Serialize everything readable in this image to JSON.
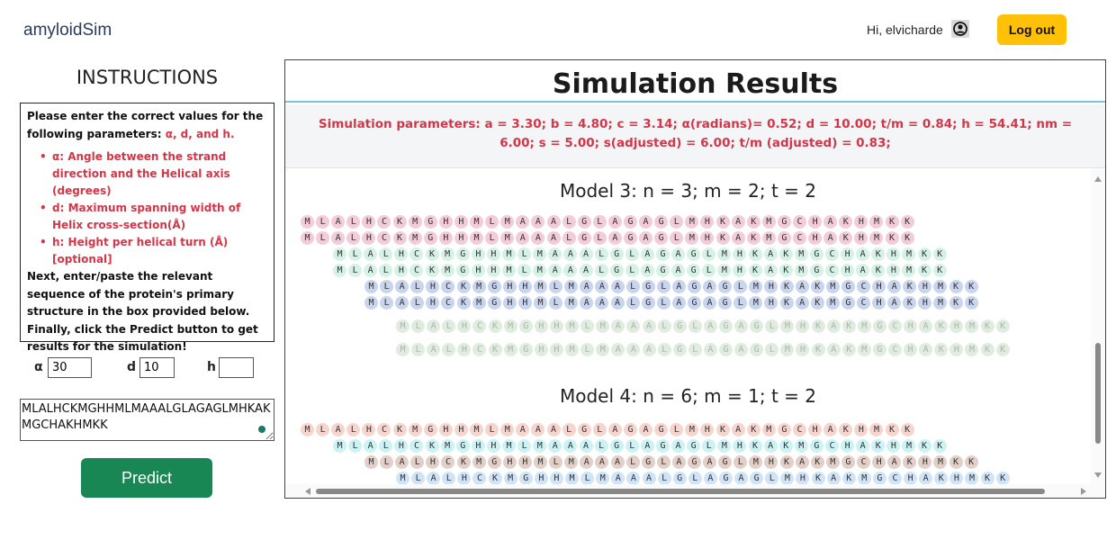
{
  "header": {
    "brand": "amyloidSim",
    "greeting": "Hi, elvicharde",
    "logout_label": "Log out"
  },
  "instructions": {
    "title": "INSTRUCTIONS",
    "intro": "Please enter the correct values for the following parameters: ",
    "intro_params": "α, d, and h.",
    "bullets": [
      "α: Angle between the strand direction and the Helical axis (degrees)",
      "d: Maximum spanning width of Helix cross-section(Å)",
      "h: Height per helical turn (Å) [optional]"
    ],
    "next": "Next, enter/paste the relevant sequence of the protein's primary structure in the box provided below.",
    "finally": "Finally, click the Predict button to get results for the simulation!"
  },
  "form": {
    "alpha_label": "α",
    "alpha_value": "30",
    "d_label": "d",
    "d_value": "10",
    "h_label": "h",
    "h_value": "",
    "sequence": "MLALHCKMGHHMLMAAALGLAGAGLMHKAKMGCHAKHMKK",
    "predict_label": "Predict"
  },
  "results": {
    "title": "Simulation Results",
    "params_text": "Simulation parameters: a = 3.30; b = 4.80; c = 3.14; α(radians)= 0.52; d = 10.00; t/m = 0.84; h = 54.41; nm = 6.00; s = 5.00; s(adjusted) = 6.00; t/m (adjusted) = 0.83;",
    "models": [
      {
        "title": "Model 3: n = 3; m = 2; t = 2",
        "rows": [
          {
            "color": "#f4cbd8",
            "faded": false
          },
          {
            "color": "#f4cbd8",
            "faded": false
          },
          {
            "color": "#d6f2e6",
            "faded": false
          },
          {
            "color": "#d6f2e6",
            "faded": false
          },
          {
            "color": "#c9d4ee",
            "faded": false
          },
          {
            "color": "#c9d4ee",
            "faded": false
          },
          {
            "color": "#e0ece0",
            "faded": true
          },
          {
            "color": "#e0ece0",
            "faded": true
          }
        ]
      },
      {
        "title": "Model 4: n = 6; m = 1; t = 2",
        "rows": [
          {
            "color": "#f6d5cf",
            "faded": false
          },
          {
            "color": "#cdf2f4",
            "faded": false
          },
          {
            "color": "#e2d0c8",
            "faded": false
          },
          {
            "color": "#cfe4f6",
            "faded": false
          }
        ]
      }
    ]
  }
}
